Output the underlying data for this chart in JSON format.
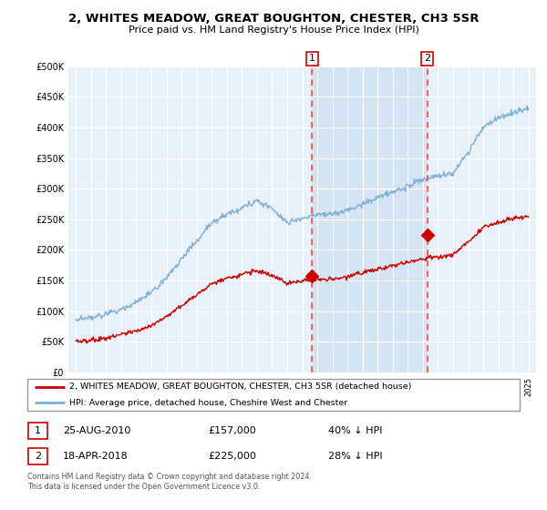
{
  "title": "2, WHITES MEADOW, GREAT BOUGHTON, CHESTER, CH3 5SR",
  "subtitle": "Price paid vs. HM Land Registry's House Price Index (HPI)",
  "legend_line1": "2, WHITES MEADOW, GREAT BOUGHTON, CHESTER, CH3 5SR (detached house)",
  "legend_line2": "HPI: Average price, detached house, Cheshire West and Chester",
  "footnote": "Contains HM Land Registry data © Crown copyright and database right 2024.\nThis data is licensed under the Open Government Licence v3.0.",
  "transaction1_date": "25-AUG-2010",
  "transaction1_price": "£157,000",
  "transaction1_hpi": "40% ↓ HPI",
  "transaction2_date": "18-APR-2018",
  "transaction2_price": "£225,000",
  "transaction2_hpi": "28% ↓ HPI",
  "hpi_color": "#7aadd4",
  "price_color": "#cc0000",
  "background_color": "#dce9f5",
  "plot_bg_color": "#e8f0f8",
  "shade_color": "#d0e4f5",
  "marker1_x": 2010.65,
  "marker1_y": 157000,
  "marker2_x": 2018.29,
  "marker2_y": 225000,
  "vline1_x": 2010.65,
  "vline2_x": 2018.29,
  "ylim": [
    0,
    500000
  ],
  "xlim_start": 1994.5,
  "xlim_end": 2025.5
}
